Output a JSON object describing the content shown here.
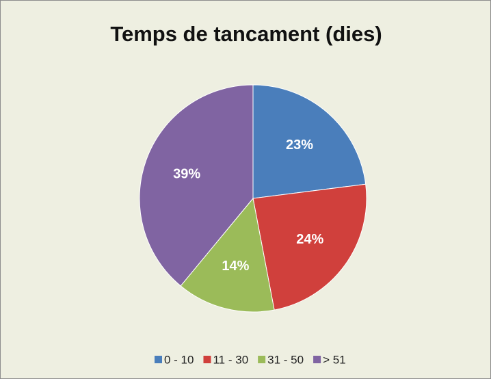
{
  "chart_data": {
    "type": "pie",
    "title": "Temps de tancament (dies)",
    "categories": [
      "0 - 10",
      "11 - 30",
      "31 - 50",
      "> 51"
    ],
    "values": [
      23,
      24,
      14,
      39
    ],
    "value_labels": [
      "23%",
      "24%",
      "14%",
      "39%"
    ],
    "colors": [
      "#4a7ebb",
      "#d0403c",
      "#9bbb59",
      "#8064a2"
    ],
    "legend": "bottom"
  }
}
